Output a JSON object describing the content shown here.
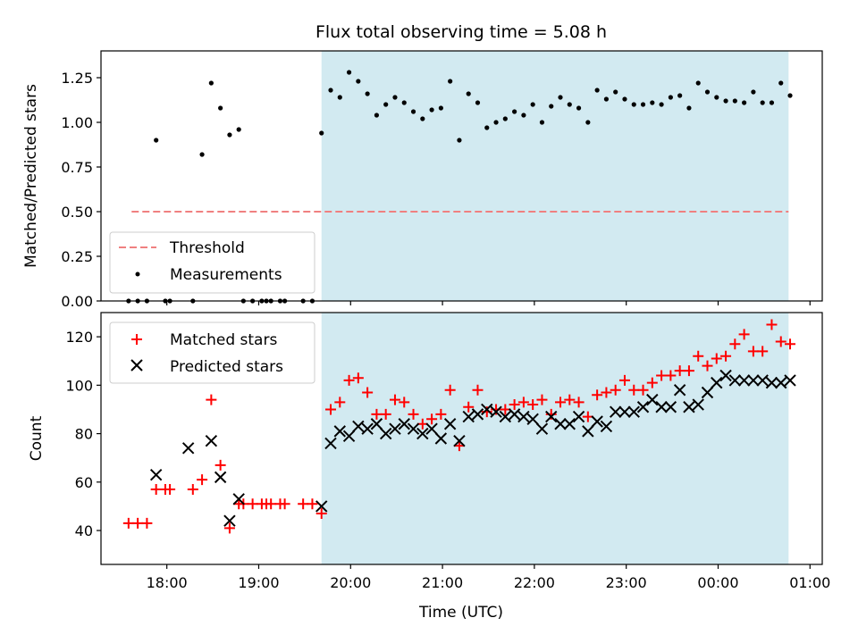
{
  "chart_data": [
    {
      "type": "scatter",
      "title": "Flux total observing time = 5.08 h",
      "xlabel": "",
      "ylabel": "Matched/Predicted stars",
      "xlim": [
        "17:17",
        "01:08"
      ],
      "ylim": [
        0,
        1.4
      ],
      "yticks": [
        "0.00",
        "0.25",
        "0.50",
        "0.75",
        "1.00",
        "1.25"
      ],
      "shaded_region": {
        "from": "19:41",
        "to": "00:46",
        "color": "#add8e6"
      },
      "threshold": {
        "name": "Threshold",
        "value": 0.5,
        "from": "17:37",
        "to": "00:46",
        "color": "#f08080"
      },
      "measurements_name": "Measurements",
      "legend_position": "lower-left",
      "grid": false,
      "x": [
        "17:35",
        "17:41",
        "17:47",
        "17:53",
        "17:59",
        "18:02",
        "18:17",
        "18:23",
        "18:29",
        "18:35",
        "18:41",
        "18:47",
        "18:50",
        "18:56",
        "19:02",
        "19:05",
        "19:08",
        "19:14",
        "19:17",
        "19:29",
        "19:35",
        "19:41",
        "19:47",
        "19:53",
        "19:59",
        "20:05",
        "20:11",
        "20:17",
        "20:23",
        "20:29",
        "20:35",
        "20:41",
        "20:47",
        "20:53",
        "20:59",
        "21:05",
        "21:11",
        "21:17",
        "21:23",
        "21:29",
        "21:35",
        "21:41",
        "21:47",
        "21:53",
        "21:59",
        "22:05",
        "22:11",
        "22:17",
        "22:23",
        "22:29",
        "22:35",
        "22:41",
        "22:47",
        "22:53",
        "22:59",
        "23:05",
        "23:11",
        "23:17",
        "23:23",
        "23:29",
        "23:35",
        "23:41",
        "23:47",
        "23:53",
        "23:59",
        "00:05",
        "00:11",
        "00:17",
        "00:23",
        "00:29",
        "00:35",
        "00:41",
        "00:47"
      ],
      "y": [
        0.0,
        0.0,
        0.0,
        0.9,
        0.0,
        0.0,
        0.0,
        0.82,
        1.22,
        1.08,
        0.93,
        0.96,
        0.0,
        0.0,
        0.0,
        0.0,
        0.0,
        0.0,
        0.0,
        0.0,
        0.0,
        0.94,
        1.18,
        1.14,
        1.28,
        1.23,
        1.16,
        1.04,
        1.1,
        1.14,
        1.11,
        1.06,
        1.02,
        1.07,
        1.08,
        1.23,
        0.9,
        1.16,
        1.11,
        0.97,
        1.0,
        1.02,
        1.06,
        1.04,
        1.1,
        1.0,
        1.09,
        1.14,
        1.1,
        1.08,
        1.0,
        1.18,
        1.13,
        1.17,
        1.13,
        1.1,
        1.1,
        1.11,
        1.1,
        1.14,
        1.15,
        1.08,
        1.22,
        1.17,
        1.14,
        1.12,
        1.12,
        1.11,
        1.17,
        1.11,
        1.11,
        1.22,
        1.15
      ]
    },
    {
      "type": "scatter",
      "title": "",
      "xlabel": "Time (UTC)",
      "ylabel": "Count",
      "xlim": [
        "17:17",
        "01:08"
      ],
      "ylim": [
        26,
        130
      ],
      "yticks": [
        "40",
        "60",
        "80",
        "100",
        "120"
      ],
      "xticks": [
        "18:00",
        "19:00",
        "20:00",
        "21:00",
        "22:00",
        "23:00",
        "00:00",
        "01:00"
      ],
      "legend_position": "upper-left",
      "grid": false,
      "series": [
        {
          "name": "Matched stars",
          "color": "#ff0000",
          "marker": "plus",
          "x": [
            "17:35",
            "17:41",
            "17:47",
            "17:53",
            "17:59",
            "18:02",
            "18:17",
            "18:23",
            "18:29",
            "18:35",
            "18:41",
            "18:47",
            "18:50",
            "18:56",
            "19:02",
            "19:05",
            "19:08",
            "19:14",
            "19:17",
            "19:29",
            "19:35",
            "19:41",
            "19:47",
            "19:53",
            "19:59",
            "20:05",
            "20:11",
            "20:17",
            "20:23",
            "20:29",
            "20:35",
            "20:41",
            "20:47",
            "20:53",
            "20:59",
            "21:05",
            "21:11",
            "21:17",
            "21:23",
            "21:29",
            "21:35",
            "21:41",
            "21:47",
            "21:53",
            "21:59",
            "22:05",
            "22:11",
            "22:17",
            "22:23",
            "22:29",
            "22:35",
            "22:41",
            "22:47",
            "22:53",
            "22:59",
            "23:05",
            "23:11",
            "23:17",
            "23:23",
            "23:29",
            "23:35",
            "23:41",
            "23:47",
            "23:53",
            "23:59",
            "00:05",
            "00:11",
            "00:17",
            "00:23",
            "00:29",
            "00:35",
            "00:41",
            "00:47"
          ],
          "values": [
            43,
            43,
            43,
            57,
            57,
            57,
            57,
            61,
            94,
            67,
            41,
            51,
            51,
            51,
            51,
            51,
            51,
            51,
            51,
            51,
            51,
            47,
            90,
            93,
            102,
            103,
            97,
            88,
            88,
            94,
            93,
            88,
            84,
            86,
            88,
            98,
            75,
            91,
            98,
            89,
            90,
            90,
            92,
            93,
            92,
            94,
            88,
            93,
            94,
            93,
            87,
            96,
            97,
            98,
            102,
            98,
            98,
            101,
            104,
            104,
            106,
            106,
            112,
            108,
            111,
            112,
            117,
            121,
            114,
            114,
            125,
            118,
            117
          ]
        },
        {
          "name": "Predicted stars",
          "color": "#000000",
          "marker": "x",
          "x": [
            "17:53",
            "18:14",
            "18:29",
            "18:35",
            "18:41",
            "18:47",
            "19:41",
            "19:47",
            "19:53",
            "19:59",
            "20:05",
            "20:11",
            "20:17",
            "20:23",
            "20:29",
            "20:35",
            "20:41",
            "20:47",
            "20:53",
            "20:59",
            "21:05",
            "21:11",
            "21:17",
            "21:23",
            "21:29",
            "21:35",
            "21:41",
            "21:47",
            "21:53",
            "21:59",
            "22:05",
            "22:11",
            "22:17",
            "22:23",
            "22:29",
            "22:35",
            "22:41",
            "22:47",
            "22:53",
            "22:59",
            "23:05",
            "23:11",
            "23:17",
            "23:23",
            "23:29",
            "23:35",
            "23:41",
            "23:47",
            "23:53",
            "23:59",
            "00:05",
            "00:11",
            "00:17",
            "00:23",
            "00:29",
            "00:35",
            "00:41",
            "00:47"
          ],
          "values": [
            63,
            74,
            77,
            62,
            44,
            53,
            50,
            76,
            81,
            79,
            83,
            82,
            84,
            80,
            82,
            84,
            82,
            80,
            82,
            78,
            84,
            77,
            87,
            88,
            90,
            89,
            87,
            88,
            87,
            86,
            82,
            87,
            84,
            84,
            87,
            81,
            85,
            83,
            89,
            89,
            89,
            91,
            94,
            91,
            91,
            98,
            91,
            92,
            97,
            101,
            104,
            102,
            102,
            102,
            102,
            101,
            101,
            102
          ]
        }
      ]
    }
  ]
}
